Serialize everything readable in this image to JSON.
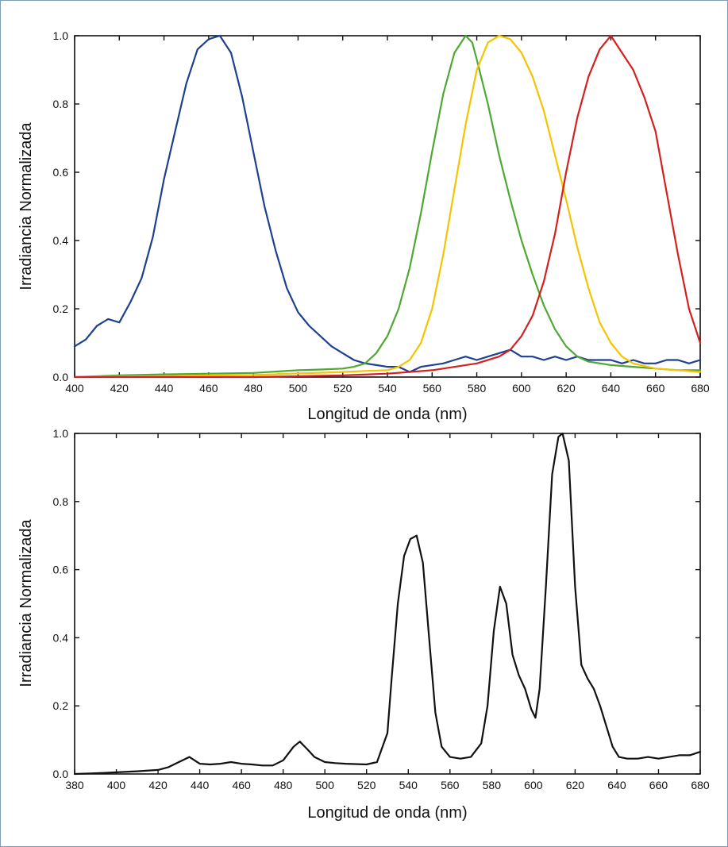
{
  "chart_data": [
    {
      "type": "line",
      "xlabel": "Longitud de onda (nm)",
      "ylabel": "Irradiancia Normalizada",
      "xlim": [
        400,
        680
      ],
      "ylim": [
        0,
        1.0
      ],
      "xticks": [
        400,
        420,
        440,
        460,
        480,
        500,
        520,
        540,
        560,
        580,
        600,
        620,
        640,
        660,
        680
      ],
      "yticks": [
        0.0,
        0.2,
        0.4,
        0.6,
        0.8,
        1.0
      ],
      "ytick_labels": [
        "0.0",
        "0.2",
        "0.4",
        "0.6",
        "0.8",
        "1.0"
      ],
      "grid": false,
      "legend": "none",
      "series": [
        {
          "color": "#1f3f8f",
          "x": [
            400,
            405,
            410,
            415,
            420,
            425,
            430,
            435,
            440,
            445,
            450,
            455,
            460,
            465,
            470,
            475,
            480,
            485,
            490,
            495,
            500,
            505,
            510,
            515,
            520,
            525,
            530,
            535,
            540,
            545,
            550,
            555,
            560,
            565,
            570,
            575,
            580,
            585,
            590,
            595,
            600,
            605,
            610,
            615,
            620,
            625,
            630,
            635,
            640,
            645,
            650,
            655,
            660,
            665,
            670,
            675,
            680
          ],
          "y": [
            0.09,
            0.11,
            0.15,
            0.17,
            0.16,
            0.22,
            0.29,
            0.41,
            0.58,
            0.72,
            0.86,
            0.96,
            0.99,
            1.0,
            0.95,
            0.82,
            0.66,
            0.5,
            0.37,
            0.26,
            0.19,
            0.15,
            0.12,
            0.09,
            0.07,
            0.05,
            0.04,
            0.035,
            0.03,
            0.03,
            0.015,
            0.03,
            0.035,
            0.04,
            0.05,
            0.06,
            0.05,
            0.06,
            0.07,
            0.08,
            0.06,
            0.06,
            0.05,
            0.06,
            0.05,
            0.06,
            0.05,
            0.05,
            0.05,
            0.04,
            0.05,
            0.04,
            0.04,
            0.05,
            0.05,
            0.04,
            0.05
          ]
        },
        {
          "color": "#4fa832",
          "x": [
            400,
            420,
            440,
            460,
            480,
            500,
            510,
            520,
            525,
            530,
            535,
            540,
            545,
            550,
            555,
            560,
            565,
            570,
            575,
            578,
            580,
            585,
            590,
            595,
            600,
            605,
            610,
            615,
            620,
            625,
            630,
            640,
            650,
            660,
            670,
            680
          ],
          "y": [
            0.0,
            0.005,
            0.008,
            0.01,
            0.012,
            0.02,
            0.022,
            0.025,
            0.03,
            0.04,
            0.07,
            0.12,
            0.2,
            0.32,
            0.48,
            0.66,
            0.83,
            0.95,
            1.0,
            0.98,
            0.93,
            0.8,
            0.65,
            0.52,
            0.4,
            0.3,
            0.21,
            0.14,
            0.09,
            0.06,
            0.045,
            0.035,
            0.03,
            0.025,
            0.02,
            0.02
          ]
        },
        {
          "color": "#f5c400",
          "x": [
            400,
            440,
            480,
            520,
            530,
            540,
            545,
            550,
            555,
            560,
            565,
            570,
            575,
            580,
            585,
            590,
            595,
            600,
            605,
            610,
            615,
            620,
            625,
            630,
            635,
            640,
            645,
            650,
            660,
            670,
            680
          ],
          "y": [
            0.0,
            0.003,
            0.006,
            0.015,
            0.018,
            0.02,
            0.03,
            0.05,
            0.1,
            0.2,
            0.36,
            0.55,
            0.74,
            0.9,
            0.98,
            1.0,
            0.99,
            0.95,
            0.88,
            0.78,
            0.65,
            0.52,
            0.38,
            0.26,
            0.16,
            0.1,
            0.06,
            0.04,
            0.025,
            0.02,
            0.015
          ]
        },
        {
          "color": "#d42020",
          "x": [
            400,
            480,
            520,
            540,
            560,
            580,
            590,
            595,
            600,
            605,
            610,
            615,
            620,
            625,
            630,
            635,
            640,
            643,
            645,
            650,
            655,
            660,
            665,
            670,
            675,
            680
          ],
          "y": [
            0.0,
            0.0,
            0.005,
            0.01,
            0.02,
            0.04,
            0.06,
            0.08,
            0.12,
            0.18,
            0.28,
            0.42,
            0.6,
            0.76,
            0.88,
            0.96,
            1.0,
            0.97,
            0.95,
            0.9,
            0.82,
            0.72,
            0.54,
            0.36,
            0.2,
            0.1
          ]
        }
      ]
    },
    {
      "type": "line",
      "xlabel": "Longitud de onda (nm)",
      "ylabel": "Irradiancia Normalizada",
      "xlim": [
        380,
        680
      ],
      "ylim": [
        0,
        1.0
      ],
      "xticks": [
        380,
        400,
        420,
        440,
        460,
        480,
        500,
        520,
        540,
        560,
        580,
        600,
        620,
        640,
        660,
        680
      ],
      "yticks": [
        0.0,
        0.2,
        0.4,
        0.6,
        0.8,
        1.0
      ],
      "ytick_labels": [
        "0.0",
        "0.2",
        "0.4",
        "0.6",
        "0.8",
        "1.0"
      ],
      "grid": false,
      "legend": "none",
      "series": [
        {
          "color": "#111111",
          "x": [
            380,
            390,
            400,
            410,
            420,
            425,
            430,
            435,
            440,
            445,
            450,
            455,
            460,
            465,
            470,
            475,
            480,
            485,
            488,
            492,
            495,
            500,
            505,
            510,
            520,
            525,
            530,
            532,
            535,
            538,
            541,
            544,
            547,
            550,
            553,
            556,
            560,
            565,
            570,
            575,
            578,
            581,
            584,
            587,
            590,
            593,
            596,
            599,
            601,
            603,
            606,
            609,
            612,
            614,
            617,
            620,
            623,
            626,
            629,
            632,
            635,
            638,
            641,
            645,
            650,
            655,
            660,
            665,
            670,
            675,
            680
          ],
          "y": [
            0.0,
            0.002,
            0.005,
            0.008,
            0.012,
            0.02,
            0.035,
            0.05,
            0.03,
            0.028,
            0.03,
            0.035,
            0.03,
            0.028,
            0.025,
            0.025,
            0.04,
            0.08,
            0.095,
            0.07,
            0.05,
            0.035,
            0.032,
            0.03,
            0.028,
            0.035,
            0.12,
            0.28,
            0.5,
            0.64,
            0.69,
            0.7,
            0.62,
            0.4,
            0.18,
            0.08,
            0.05,
            0.045,
            0.05,
            0.09,
            0.2,
            0.42,
            0.55,
            0.5,
            0.35,
            0.29,
            0.25,
            0.19,
            0.165,
            0.25,
            0.55,
            0.88,
            0.99,
            1.0,
            0.92,
            0.55,
            0.32,
            0.28,
            0.25,
            0.2,
            0.14,
            0.08,
            0.05,
            0.045,
            0.045,
            0.05,
            0.045,
            0.05,
            0.055,
            0.055,
            0.065
          ]
        }
      ]
    }
  ]
}
